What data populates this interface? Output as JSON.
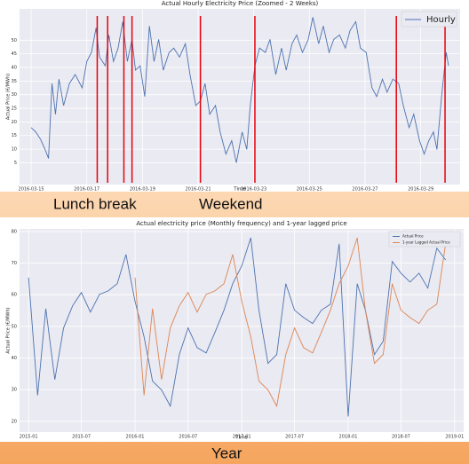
{
  "chart_data": [
    {
      "type": "line",
      "title": "Actual Hourly Electricity Price (Zoomed - 2 Weeks)",
      "x_label": "Time",
      "y_label": "Actual Price (€/MWh)",
      "x": [
        "2016-03-15T00:00",
        "2016-03-15T04:00",
        "2016-03-15T08:00",
        "2016-03-15T12:00",
        "2016-03-15T15:00",
        "2016-03-15T18:00",
        "2016-03-15T21:00",
        "2016-03-16T00:00",
        "2016-03-16T04:00",
        "2016-03-16T09:00",
        "2016-03-16T14:00",
        "2016-03-16T20:00",
        "2016-03-17T00:00",
        "2016-03-17T04:00",
        "2016-03-17T08:00",
        "2016-03-17T11:00",
        "2016-03-17T16:00",
        "2016-03-17T19:00",
        "2016-03-17T23:00",
        "2016-03-18T03:00",
        "2016-03-18T07:00",
        "2016-03-18T11:00",
        "2016-03-18T15:00",
        "2016-03-18T18:00",
        "2016-03-18T22:00",
        "2016-03-19T02:00",
        "2016-03-19T06:00",
        "2016-03-19T10:00",
        "2016-03-19T14:00",
        "2016-03-19T18:00",
        "2016-03-19T23:00",
        "2016-03-20T03:00",
        "2016-03-20T08:00",
        "2016-03-20T13:00",
        "2016-03-20T17:00",
        "2016-03-20T22:00",
        "2016-03-21T02:00",
        "2016-03-21T06:00",
        "2016-03-21T10:00",
        "2016-03-21T15:00",
        "2016-03-21T19:00",
        "2016-03-22T00:00",
        "2016-03-22T05:00",
        "2016-03-22T09:00",
        "2016-03-22T14:00",
        "2016-03-22T18:00",
        "2016-03-22T21:00",
        "2016-03-23T01:00",
        "2016-03-23T05:00",
        "2016-03-23T10:00",
        "2016-03-23T14:00",
        "2016-03-23T19:00",
        "2016-03-24T00:00",
        "2016-03-24T04:00",
        "2016-03-24T09:00",
        "2016-03-24T13:00",
        "2016-03-24T18:00",
        "2016-03-24T23:00",
        "2016-03-25T03:00",
        "2016-03-25T08:00",
        "2016-03-25T12:00",
        "2016-03-25T17:00",
        "2016-03-25T21:00",
        "2016-03-26T02:00",
        "2016-03-26T07:00",
        "2016-03-26T11:00",
        "2016-03-26T16:00",
        "2016-03-26T20:00",
        "2016-03-27T01:00",
        "2016-03-27T06:00",
        "2016-03-27T10:00",
        "2016-03-27T15:00",
        "2016-03-27T19:00",
        "2016-03-28T00:00",
        "2016-03-28T05:00",
        "2016-03-28T09:00",
        "2016-03-28T14:00",
        "2016-03-28T18:00",
        "2016-03-28T23:00",
        "2016-03-29T03:00",
        "2016-03-29T07:00",
        "2016-03-29T11:00",
        "2016-03-29T14:00",
        "2016-03-29T18:00",
        "2016-03-29T22:00",
        "2016-03-30T00:00"
      ],
      "series": [
        {
          "name": "Hourly",
          "color": "#4c72b0",
          "values": [
            17.9,
            16.3,
            13.7,
            9.9,
            6.6,
            34.1,
            22.8,
            35.7,
            26,
            34.1,
            37.4,
            32.5,
            42.2,
            45.5,
            54.5,
            43.8,
            40.6,
            51.9,
            42.2,
            47.1,
            56.8,
            42.2,
            50.3,
            39,
            40.6,
            29.3,
            55.2,
            42.2,
            50.3,
            39,
            45.5,
            47.1,
            43.8,
            48.7,
            37.4,
            26,
            27.7,
            34.1,
            22.8,
            26,
            16.3,
            8.2,
            13.1,
            5,
            16.3,
            9.9,
            26,
            40.6,
            47.1,
            45.5,
            50.3,
            37.4,
            47.1,
            39,
            48.7,
            51.9,
            45.5,
            50.3,
            58.4,
            48.7,
            55.2,
            45.5,
            50.3,
            51.9,
            47.1,
            53.5,
            56.8,
            47.1,
            45.5,
            32.5,
            29.3,
            35.7,
            30.9,
            35.7,
            34.1,
            26,
            17.9,
            22.8,
            13.1,
            8.2,
            13.1,
            16.3,
            9.9,
            29.3,
            45.5,
            40.6
          ]
        }
      ],
      "vlines": [
        "2016-03-17T09:00",
        "2016-03-17T18:00",
        "2016-03-18T08:00",
        "2016-03-18T15:00",
        "2016-03-21T02:00",
        "2016-03-23T01:00",
        "2016-03-28T03:00",
        "2016-03-29T21:00"
      ],
      "vline_color": "#e8000b",
      "xlim": [
        "2016-03-14T14:00",
        "2016-03-30T10:00"
      ],
      "xticks": [
        "2016-03-15",
        "2016-03-17",
        "2016-03-19",
        "2016-03-21",
        "2016-03-23",
        "2016-03-25",
        "2016-03-27",
        "2016-03-29"
      ],
      "ylim": [
        -3,
        61.5
      ],
      "yticks": [
        5,
        10,
        15,
        20,
        25,
        30,
        35,
        40,
        45,
        50
      ],
      "grid": true,
      "legend": "upper right"
    },
    {
      "type": "line",
      "title": "Actual electricity price (Monthly frequency) and 1-year lagged price",
      "x_label": "Time",
      "y_label": "Actual Price (€/MWh)",
      "x": [
        "2015-01",
        "2015-02",
        "2015-03",
        "2015-04",
        "2015-05",
        "2015-06",
        "2015-07",
        "2015-08",
        "2015-09",
        "2015-10",
        "2015-11",
        "2015-12",
        "2016-01",
        "2016-02",
        "2016-03",
        "2016-04",
        "2016-05",
        "2016-06",
        "2016-07",
        "2016-08",
        "2016-09",
        "2016-10",
        "2016-11",
        "2016-12",
        "2017-01",
        "2017-02",
        "2017-03",
        "2017-04",
        "2017-05",
        "2017-06",
        "2017-07",
        "2017-08",
        "2017-09",
        "2017-10",
        "2017-11",
        "2017-12",
        "2018-01",
        "2018-02",
        "2018-03",
        "2018-04",
        "2018-05",
        "2018-06",
        "2018-07",
        "2018-08",
        "2018-09",
        "2018-10",
        "2018-11",
        "2018-12"
      ],
      "series": [
        {
          "name": "Actual Price",
          "color": "#4c72b0",
          "values": [
            65.4,
            28.2,
            55.6,
            33.2,
            49.5,
            56.5,
            60.7,
            54.5,
            60.1,
            61.2,
            63.5,
            72.7,
            57.9,
            46.7,
            32.7,
            29.9,
            24.8,
            41.1,
            49.5,
            43.3,
            41.6,
            48.1,
            55.1,
            63.5,
            69.1,
            78,
            55.1,
            38.3,
            41.1,
            63.5,
            55.1,
            52.8,
            50.9,
            55.1,
            57,
            76.1,
            21.5,
            63.5,
            55.1,
            41.1,
            45.3,
            70.5,
            66.8,
            64,
            66.8,
            62.1,
            74.7,
            71
          ]
        },
        {
          "name": "1-year Lagged Actual Price",
          "color": "#dd8452",
          "values": [
            null,
            null,
            null,
            null,
            null,
            null,
            null,
            null,
            null,
            null,
            null,
            null,
            65.4,
            28.2,
            55.6,
            33.2,
            49.5,
            56.5,
            60.7,
            54.5,
            60.1,
            61.2,
            63.5,
            72.7,
            57.9,
            46.7,
            32.7,
            29.9,
            24.8,
            41.1,
            49.5,
            43.3,
            41.6,
            48.1,
            55.1,
            63.5,
            69.1,
            78,
            55.1,
            38.3,
            41.1,
            63.5,
            55.1,
            52.8,
            50.9,
            55.1,
            57,
            76.1
          ]
        }
      ],
      "xlim": [
        "2014-12",
        "2019-02"
      ],
      "xticks": [
        "2015-01",
        "2015-07",
        "2016-01",
        "2016-07",
        "2017-01",
        "2017-07",
        "2018-01",
        "2018-07",
        "2019-01"
      ],
      "ylim": [
        16.6,
        80.8
      ],
      "yticks": [
        20,
        30,
        40,
        50,
        60,
        70,
        80
      ],
      "grid": true,
      "legend": "upper right"
    }
  ],
  "annotations": [
    "Lunch break",
    "Weekend",
    "Year"
  ]
}
